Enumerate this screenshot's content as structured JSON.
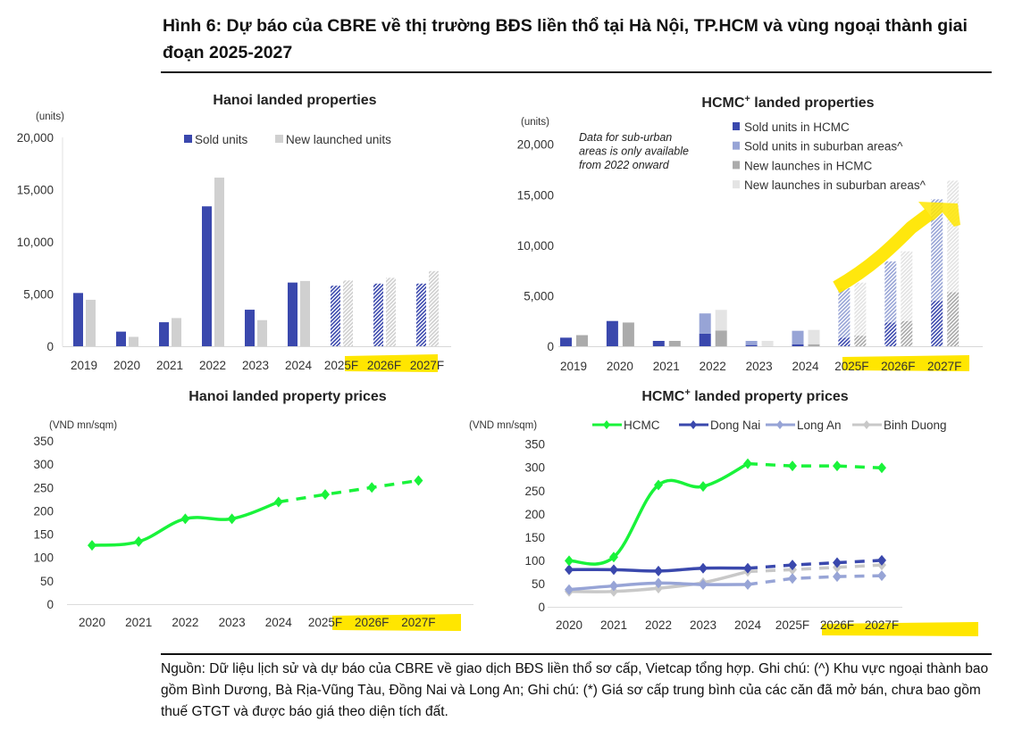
{
  "figure": {
    "title": "Hình 6: Dự báo của CBRE về thị trường BĐS liền thổ tại Hà Nội, TP.HCM và vùng ngoại thành giai đoạn 2025-2027",
    "source_note": "Nguồn: Dữ liệu lịch sử và dự báo của CBRE về giao dịch BĐS liền thổ sơ cấp, Vietcap tổng hợp. Ghi chú: (^) Khu vực ngoại thành bao gồm Bình Dương, Bà Rịa-Vũng Tàu, Đồng Nai và Long An; Ghi chú: (*) Giá sơ cấp trung bình của các căn đã mở bán, chưa bao gồm thuế GTGT và được báo giá theo diện tích đất.",
    "highlight_color": "#ffe600"
  },
  "chart_data": [
    {
      "id": "hanoi_units",
      "type": "bar",
      "title": "Hanoi landed properties",
      "ylabel": "(units)",
      "ylim": [
        0,
        20000
      ],
      "yticks": [
        0,
        5000,
        10000,
        15000,
        20000
      ],
      "ytick_labels": [
        "0",
        "5,000",
        "10,000",
        "15,000",
        "20,000"
      ],
      "categories": [
        "2019",
        "2020",
        "2021",
        "2022",
        "2023",
        "2024",
        "2025F",
        "2026F",
        "2027F"
      ],
      "forecast_from_index": 6,
      "highlighted_categories": [
        "2025F",
        "2026F",
        "2027F"
      ],
      "legend_position": "top-right",
      "series": [
        {
          "name": "Sold units",
          "color": "#3a48ad",
          "values": [
            5100,
            1400,
            2300,
            13400,
            3500,
            6100,
            5800,
            6000,
            6000
          ]
        },
        {
          "name": "New launched units",
          "color": "#d0d0d0",
          "values": [
            4450,
            900,
            2700,
            16150,
            2500,
            6250,
            6300,
            6550,
            7200
          ]
        }
      ]
    },
    {
      "id": "hcmc_units",
      "type": "bar",
      "stacked": true,
      "title": "HCMC",
      "title_sup": "+",
      "title_rest": " landed properties",
      "ylabel": "(units)",
      "ylim": [
        0,
        20000
      ],
      "yticks": [
        0,
        5000,
        10000,
        15000,
        20000
      ],
      "ytick_labels": [
        "0",
        "5,000",
        "10,000",
        "15,000",
        "20,000"
      ],
      "categories": [
        "2019",
        "2020",
        "2021",
        "2022",
        "2023",
        "2024",
        "2025F",
        "2026F",
        "2027F"
      ],
      "forecast_from_index": 6,
      "highlighted_categories": [
        "2025F",
        "2026F",
        "2027F"
      ],
      "annotation": [
        "Data for sub-urban",
        "areas is only available",
        "from 2022 onward"
      ],
      "trend_arrow": "yellow arrow rising from 2025F to 2027F",
      "legend_position": "top-right",
      "groups": [
        {
          "name": "Sold",
          "series": [
            {
              "name": "Sold units in HCMC",
              "color": "#3a48ad",
              "values": [
                850,
                2500,
                530,
                1250,
                120,
                200,
                850,
                2350,
                4500
              ]
            },
            {
              "name": "Sold units in suburban areas^",
              "color": "#97a4d6",
              "values": [
                0,
                0,
                0,
                2000,
                410,
                1330,
                4900,
                6050,
                10050
              ]
            }
          ]
        },
        {
          "name": "New launches",
          "series": [
            {
              "name": "New launches in HCMC",
              "color": "#ababab",
              "values": [
                1100,
                2350,
                530,
                1550,
                0,
                200,
                1050,
                2500,
                5350
              ]
            },
            {
              "name": "New launches in suburban areas^",
              "color": "#e4e4e4",
              "values": [
                0,
                0,
                0,
                2050,
                530,
                1420,
                5250,
                6900,
                11050
              ]
            }
          ]
        }
      ]
    },
    {
      "id": "hanoi_prices",
      "type": "line",
      "title": "Hanoi landed property prices",
      "ylabel": "(VND mn/sqm)",
      "ylim": [
        0,
        350
      ],
      "yticks": [
        0,
        50,
        100,
        150,
        200,
        250,
        300,
        350
      ],
      "categories": [
        "2020",
        "2021",
        "2022",
        "2023",
        "2024",
        "2025F",
        "2026F",
        "2027F"
      ],
      "forecast_from_index": 4,
      "highlighted_categories": [
        "2025F",
        "2026F",
        "2027F"
      ],
      "series": [
        {
          "name": "Hanoi",
          "color": "#19f33a",
          "values": [
            126,
            134,
            183,
            183,
            219,
            235,
            250,
            265
          ]
        }
      ]
    },
    {
      "id": "hcmc_prices",
      "type": "line",
      "title": "HCMC",
      "title_sup": "+",
      "title_rest": " landed property prices",
      "ylabel": "(VND mn/sqm)",
      "ylim": [
        0,
        350
      ],
      "yticks": [
        0,
        50,
        100,
        150,
        200,
        250,
        300,
        350
      ],
      "categories": [
        "2020",
        "2021",
        "2022",
        "2023",
        "2024",
        "2025F",
        "2026F",
        "2027F"
      ],
      "forecast_from_index": 4,
      "highlighted_categories": [
        "2025F",
        "2026F",
        "2027F"
      ],
      "legend_position": "top",
      "series": [
        {
          "name": "HCMC",
          "color": "#19f33a",
          "values": [
            99,
            107,
            262,
            259,
            308,
            303,
            303,
            299
          ]
        },
        {
          "name": "Dong Nai",
          "color": "#3a48ad",
          "values": [
            80,
            80,
            77,
            83,
            83,
            90,
            95,
            100
          ]
        },
        {
          "name": "Long An",
          "color": "#97a4d6",
          "values": [
            37,
            45,
            51,
            48,
            48,
            61,
            65,
            67
          ]
        },
        {
          "name": "Binh Duong",
          "color": "#c8c8c8",
          "values": [
            33,
            33,
            40,
            52,
            76,
            80,
            85,
            90
          ]
        }
      ]
    }
  ]
}
